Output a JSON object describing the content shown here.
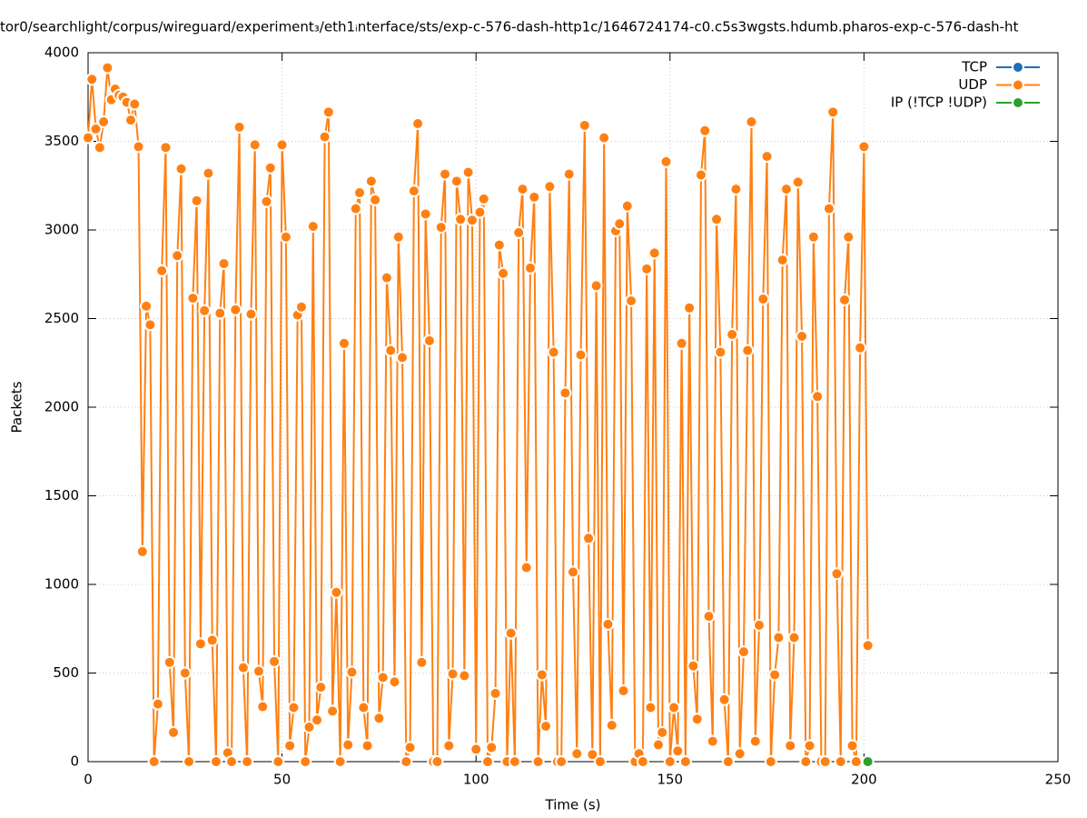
{
  "chart_data": {
    "type": "line",
    "title": "tor0/searchlight/corpus/wireguard/experiment₃/eth1ᵢnterface/sts/exp-c-576-dash-http1c/1646724174-c0.c5s3wgsts.hdumb.pharos-exp-c-576-dash-ht",
    "x_label": "Time (s)",
    "y_label": "Packets",
    "xlim": [
      0,
      250
    ],
    "xticks": [
      0,
      50,
      100,
      150,
      200,
      250
    ],
    "ylim": [
      0,
      4000
    ],
    "yticks": [
      0,
      500,
      1000,
      1500,
      2000,
      2500,
      3000,
      3500,
      4000
    ],
    "grid": true,
    "legend": "top-right",
    "series": [
      {
        "name": "TCP",
        "color": "#1f6fb4",
        "x": [],
        "values": []
      },
      {
        "name": "UDP",
        "color": "#ff8012",
        "x": [
          0,
          1,
          2,
          3,
          4,
          5,
          6,
          7,
          8,
          9,
          10,
          11,
          12,
          13,
          14,
          15,
          16,
          17,
          18,
          19,
          20,
          21,
          22,
          23,
          24,
          25,
          26,
          27,
          28,
          29,
          30,
          31,
          32,
          33,
          34,
          35,
          36,
          37,
          38,
          39,
          40,
          41,
          42,
          43,
          44,
          45,
          46,
          47,
          48,
          49,
          50,
          51,
          52,
          53,
          54,
          55,
          56,
          57,
          58,
          59,
          60,
          61,
          62,
          63,
          64,
          65,
          66,
          67,
          68,
          69,
          70,
          71,
          72,
          73,
          74,
          75,
          76,
          77,
          78,
          79,
          80,
          81,
          82,
          83,
          84,
          85,
          86,
          87,
          88,
          89,
          90,
          91,
          92,
          93,
          94,
          95,
          96,
          97,
          98,
          99,
          100,
          101,
          102,
          103,
          104,
          105,
          106,
          107,
          108,
          109,
          110,
          111,
          112,
          113,
          114,
          115,
          116,
          117,
          118,
          119,
          120,
          121,
          122,
          123,
          124,
          125,
          126,
          127,
          128,
          129,
          130,
          131,
          132,
          133,
          134,
          135,
          136,
          137,
          138,
          139,
          140,
          141,
          142,
          143,
          144,
          145,
          146,
          147,
          148,
          149,
          150,
          151,
          152,
          153,
          154,
          155,
          156,
          157,
          158,
          159,
          160,
          161,
          162,
          163,
          164,
          165,
          166,
          167,
          168,
          169,
          170,
          171,
          172,
          173,
          174,
          175,
          176,
          177,
          178,
          179,
          180,
          181,
          182,
          183,
          184,
          185,
          186,
          187,
          188,
          189,
          190,
          191,
          192,
          193,
          194,
          195,
          196,
          197,
          198,
          199,
          200,
          201
        ],
        "values": [
          3520,
          3850,
          3570,
          3465,
          3610,
          3915,
          3735,
          3795,
          3760,
          3750,
          3720,
          3620,
          3710,
          3470,
          1185,
          2570,
          2465,
          0,
          325,
          2770,
          3465,
          560,
          165,
          2855,
          3345,
          500,
          0,
          2615,
          3165,
          665,
          2545,
          3320,
          685,
          0,
          2530,
          2810,
          50,
          0,
          2550,
          3580,
          530,
          0,
          2525,
          3480,
          510,
          310,
          3160,
          3350,
          565,
          0,
          3480,
          2960,
          90,
          305,
          2520,
          2565,
          0,
          195,
          3020,
          235,
          420,
          3525,
          3665,
          285,
          955,
          0,
          2360,
          95,
          505,
          3120,
          3210,
          305,
          90,
          3275,
          3170,
          245,
          475,
          2730,
          2320,
          450,
          2960,
          2280,
          0,
          80,
          3220,
          3600,
          560,
          3090,
          2375,
          0,
          0,
          3015,
          3315,
          90,
          495,
          3275,
          3060,
          485,
          3325,
          3055,
          70,
          3100,
          3175,
          0,
          80,
          385,
          2915,
          2755,
          0,
          725,
          0,
          2985,
          3230,
          1095,
          2785,
          3185,
          0,
          490,
          200,
          3245,
          2310,
          0,
          0,
          2080,
          3315,
          1070,
          45,
          2295,
          3590,
          1260,
          40,
          2685,
          0,
          3520,
          775,
          205,
          2995,
          3035,
          400,
          3135,
          2600,
          0,
          45,
          0,
          2780,
          305,
          2870,
          95,
          165,
          3385,
          0,
          305,
          60,
          2360,
          0,
          2560,
          540,
          240,
          3310,
          3560,
          820,
          115,
          3060,
          2310,
          350,
          0,
          2410,
          3230,
          45,
          620,
          2320,
          3610,
          115,
          770,
          2610,
          3415,
          0,
          490,
          700,
          2830,
          3230,
          90,
          700,
          3270,
          2400,
          0,
          90,
          2960,
          2060,
          0,
          0,
          3120,
          3665,
          1060,
          0,
          2605,
          2960,
          90,
          0,
          2335,
          3470,
          655
        ]
      },
      {
        "name": "IP (!TCP  !UDP)",
        "color": "#2ca02c",
        "x": [
          201
        ],
        "values": [
          0
        ]
      }
    ]
  }
}
